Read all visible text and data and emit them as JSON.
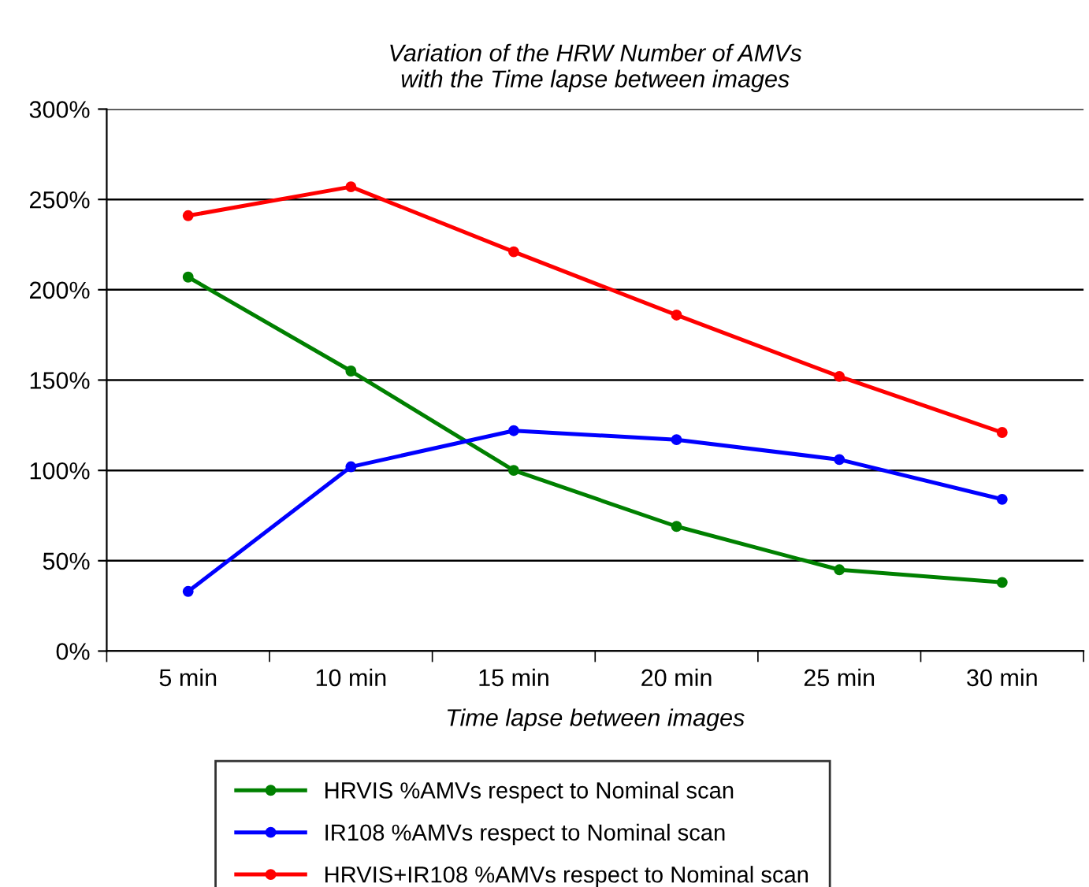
{
  "chart_data": {
    "type": "line",
    "title": "Variation of the HRW Number of AMVs\nwith the Time lapse between images",
    "xlabel": "Time lapse between images",
    "categories": [
      "5 min",
      "10 min",
      "15 min",
      "20 min",
      "25 min",
      "30 min"
    ],
    "series": [
      {
        "name": "HRVIS %AMVs respect to Nominal scan",
        "color": "#008000",
        "values": [
          207,
          155,
          100,
          69,
          45,
          38
        ]
      },
      {
        "name": "IR108 %AMVs respect to Nominal scan",
        "color": "#0000ff",
        "values": [
          33,
          102,
          122,
          117,
          106,
          84
        ]
      },
      {
        "name": "HRVIS+IR108 %AMVs respect to Nominal scan",
        "color": "#ff0000",
        "values": [
          241,
          257,
          221,
          186,
          152,
          121
        ]
      }
    ],
    "ylim": [
      0,
      300
    ],
    "yticks": [
      {
        "value": 0,
        "label": "0%"
      },
      {
        "value": 50,
        "label": "50%"
      },
      {
        "value": 100,
        "label": "100%"
      },
      {
        "value": 150,
        "label": "150%"
      },
      {
        "value": 200,
        "label": "200%"
      },
      {
        "value": 250,
        "label": "250%"
      },
      {
        "value": 300,
        "label": "300%"
      }
    ],
    "grid": "y",
    "legend": "bottom",
    "marker": "circle",
    "line_style": "solid"
  }
}
